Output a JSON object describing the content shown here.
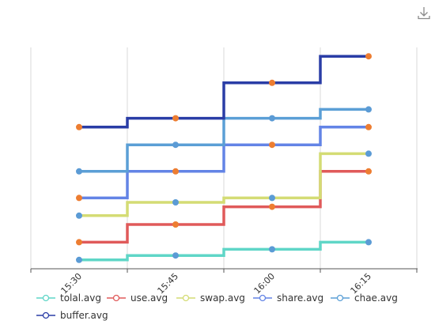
{
  "chart_data": {
    "type": "line",
    "step": "end",
    "x": [
      "15:30",
      "15:45",
      "16:00",
      "16:15"
    ],
    "x_tick_labels": [
      "15:30",
      "15:45",
      "16:00",
      "16:15"
    ],
    "grid": true,
    "legend_position": "bottom-left",
    "series": [
      {
        "name": "tolal.avg",
        "color": "#5fd6c7",
        "dot_color": "#5b9bd5",
        "points": [
          [
            0,
            1.0
          ],
          [
            1,
            1.5
          ],
          [
            2,
            2.2
          ],
          [
            3,
            3.0
          ]
        ]
      },
      {
        "name": "use.avg",
        "color": "#e05a5a",
        "dot_color": "#ed7d31",
        "points": [
          [
            0,
            3.0
          ],
          [
            1,
            5.0
          ],
          [
            2,
            7.0
          ],
          [
            3,
            11.0
          ]
        ]
      },
      {
        "name": "swap.avg",
        "color": "#d4dc74",
        "dot_color": "#5b9bd5",
        "points": [
          [
            0,
            6.0
          ],
          [
            1,
            7.5
          ],
          [
            2,
            8.0
          ],
          [
            3,
            13.0
          ]
        ]
      },
      {
        "name": "share.avg",
        "color": "#6384e6",
        "dot_color": "#ed7d31",
        "points": [
          [
            0,
            8.0
          ],
          [
            1,
            11.0
          ],
          [
            2,
            14.0
          ],
          [
            3,
            16.0
          ]
        ]
      },
      {
        "name": "chae.avg",
        "color": "#5b9fd6",
        "dot_color": "#5b9bd5",
        "points": [
          [
            0,
            11.0
          ],
          [
            1,
            14.0
          ],
          [
            2,
            17.0
          ],
          [
            3,
            18.0
          ]
        ]
      },
      {
        "name": "buffer.avg",
        "color": "#2a3da6",
        "dot_color": "#ed7d31",
        "points": [
          [
            0,
            16.0
          ],
          [
            1,
            17.0
          ],
          [
            2,
            21.0
          ],
          [
            3,
            24.0
          ]
        ]
      }
    ]
  },
  "toolbar": {
    "download_icon": "download-icon"
  }
}
